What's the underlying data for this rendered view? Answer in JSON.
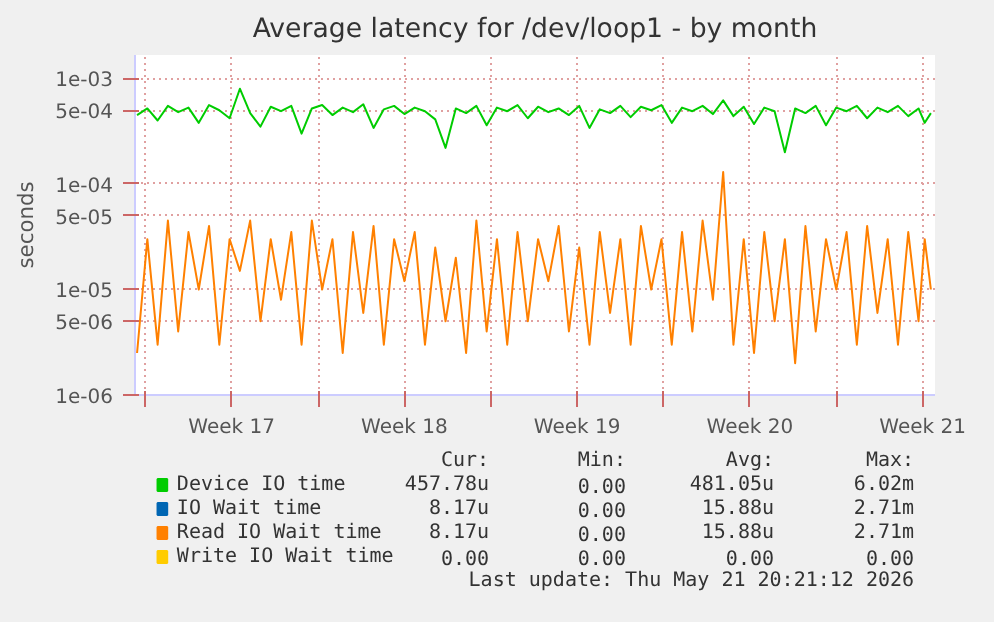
{
  "chart_data": {
    "type": "line",
    "title": "Average latency for /dev/loop1 - by month",
    "ylabel": "seconds",
    "log": "y",
    "grid": true,
    "legend": "bottom",
    "marker": "none",
    "line_style": "solid",
    "xlim": [
      "2026-04-19T14:00",
      "2026-05-22T00:00"
    ],
    "ylim": [
      1e-06,
      0.00167
    ],
    "xticks": [
      {
        "value": "2026-04-20",
        "label": null
      },
      {
        "value": "2026-04-23T12:00",
        "label": "Week 17"
      },
      {
        "value": "2026-04-27",
        "label": null
      },
      {
        "value": "2026-04-30T12:00",
        "label": "Week 18"
      },
      {
        "value": "2026-05-04",
        "label": null
      },
      {
        "value": "2026-05-07T12:00",
        "label": "Week 19"
      },
      {
        "value": "2026-05-11",
        "label": null
      },
      {
        "value": "2026-05-14T12:00",
        "label": "Week 20"
      },
      {
        "value": "2026-05-18",
        "label": null
      },
      {
        "value": "2026-05-21T12:00",
        "label": "Week 21"
      }
    ],
    "yticks": [
      {
        "value": 1e-06,
        "label": "1e-06"
      },
      {
        "value": 5e-06,
        "label": "5e-06"
      },
      {
        "value": 1e-05,
        "label": "1e-05"
      },
      {
        "value": 5e-05,
        "label": "5e-05"
      },
      {
        "value": 0.0001,
        "label": "1e-04"
      },
      {
        "value": 0.0005,
        "label": "5e-04"
      },
      {
        "value": 0.001,
        "label": "1e-03"
      }
    ],
    "x": [
      "2026-04-19T16:00",
      "2026-04-20T02:00",
      "2026-04-20T12:00",
      "2026-04-20T22:00",
      "2026-04-21T08:00",
      "2026-04-21T18:00",
      "2026-04-22T04:00",
      "2026-04-22T14:00",
      "2026-04-23T00:00",
      "2026-04-23T10:00",
      "2026-04-23T20:00",
      "2026-04-24T06:00",
      "2026-04-24T16:00",
      "2026-04-25T02:00",
      "2026-04-25T12:00",
      "2026-04-25T22:00",
      "2026-04-26T08:00",
      "2026-04-26T18:00",
      "2026-04-27T04:00",
      "2026-04-27T14:00",
      "2026-04-28T00:00",
      "2026-04-28T10:00",
      "2026-04-28T20:00",
      "2026-04-29T06:00",
      "2026-04-29T16:00",
      "2026-04-30T02:00",
      "2026-04-30T12:00",
      "2026-04-30T22:00",
      "2026-05-01T08:00",
      "2026-05-01T18:00",
      "2026-05-02T04:00",
      "2026-05-02T14:00",
      "2026-05-03T00:00",
      "2026-05-03T10:00",
      "2026-05-03T20:00",
      "2026-05-04T06:00",
      "2026-05-04T16:00",
      "2026-05-05T02:00",
      "2026-05-05T12:00",
      "2026-05-05T22:00",
      "2026-05-06T08:00",
      "2026-05-06T18:00",
      "2026-05-07T04:00",
      "2026-05-07T14:00",
      "2026-05-08T00:00",
      "2026-05-08T10:00",
      "2026-05-08T20:00",
      "2026-05-09T06:00",
      "2026-05-09T16:00",
      "2026-05-10T02:00",
      "2026-05-10T12:00",
      "2026-05-10T22:00",
      "2026-05-11T08:00",
      "2026-05-11T18:00",
      "2026-05-12T04:00",
      "2026-05-12T14:00",
      "2026-05-13T00:00",
      "2026-05-13T10:00",
      "2026-05-13T20:00",
      "2026-05-14T06:00",
      "2026-05-14T16:00",
      "2026-05-15T02:00",
      "2026-05-15T12:00",
      "2026-05-15T22:00",
      "2026-05-16T08:00",
      "2026-05-16T18:00",
      "2026-05-17T04:00",
      "2026-05-17T14:00",
      "2026-05-18T00:00",
      "2026-05-18T10:00",
      "2026-05-18T20:00",
      "2026-05-19T06:00",
      "2026-05-19T16:00",
      "2026-05-20T02:00",
      "2026-05-20T12:00",
      "2026-05-20T22:00",
      "2026-05-21T08:00",
      "2026-05-21T14:00",
      "2026-05-21T20:00"
    ],
    "series": [
      {
        "name": "Device IO time",
        "color": "#00cc00",
        "values": [
          0.00045,
          0.00052,
          0.0004,
          0.00055,
          0.00048,
          0.00053,
          0.00038,
          0.00056,
          0.0005,
          0.00042,
          0.0008,
          0.00047,
          0.00035,
          0.00054,
          0.00049,
          0.00055,
          0.0003,
          0.00052,
          0.00056,
          0.00045,
          0.00053,
          0.00048,
          0.00057,
          0.00034,
          0.00051,
          0.00055,
          0.00046,
          0.00053,
          0.00049,
          0.00041,
          0.00022,
          0.00052,
          0.00047,
          0.00055,
          0.00036,
          0.00053,
          0.00049,
          0.00056,
          0.00042,
          0.00054,
          0.00048,
          0.00052,
          0.00045,
          0.00055,
          0.00034,
          0.00051,
          0.00047,
          0.00055,
          0.00043,
          0.00054,
          0.0005,
          0.00056,
          0.00038,
          0.00053,
          0.00049,
          0.00055,
          0.00046,
          0.00062,
          0.00044,
          0.00054,
          0.00037,
          0.00053,
          0.00049,
          0.0002,
          0.00052,
          0.00047,
          0.00055,
          0.00036,
          0.00053,
          0.00049,
          0.00055,
          0.00042,
          0.00053,
          0.00048,
          0.00055,
          0.00044,
          0.00052,
          0.00038,
          0.00047
        ]
      },
      {
        "name": "IO Wait time",
        "color": "#0066b3",
        "values": [
          null,
          null,
          null,
          null,
          null,
          null,
          null,
          null,
          null,
          null,
          null,
          null,
          null,
          null,
          null,
          null,
          null,
          null,
          null,
          null,
          null,
          null,
          null,
          null,
          null,
          null,
          null,
          null,
          null,
          null,
          null,
          null,
          null,
          null,
          null,
          null,
          null,
          null,
          null,
          null,
          null,
          null,
          null,
          null,
          null,
          null,
          null,
          null,
          null,
          null,
          null,
          null,
          null,
          null,
          null,
          null,
          null,
          null,
          null,
          null,
          null,
          null,
          null,
          null,
          null,
          null,
          null,
          null,
          null,
          null,
          null,
          null,
          null,
          null,
          null,
          null,
          null,
          null,
          null
        ]
      },
      {
        "name": "Read IO Wait time",
        "color": "#ff8000",
        "values": [
          2.5e-06,
          3e-05,
          3e-06,
          4.5e-05,
          4e-06,
          3.5e-05,
          1e-05,
          4e-05,
          3e-06,
          3e-05,
          1.5e-05,
          4.5e-05,
          5e-06,
          3e-05,
          8e-06,
          3.5e-05,
          3e-06,
          4.5e-05,
          1e-05,
          3e-05,
          2.5e-06,
          3.5e-05,
          6e-06,
          4e-05,
          3e-06,
          3e-05,
          1.2e-05,
          3.5e-05,
          3e-06,
          2.5e-05,
          5e-06,
          2e-05,
          2.5e-06,
          4.5e-05,
          4e-06,
          3e-05,
          3e-06,
          3.5e-05,
          5e-06,
          3e-05,
          1.2e-05,
          4e-05,
          4e-06,
          2.5e-05,
          3e-06,
          3.5e-05,
          6e-06,
          3e-05,
          3e-06,
          4e-05,
          1e-05,
          3e-05,
          3e-06,
          3.5e-05,
          4e-06,
          4.5e-05,
          8e-06,
          0.00013,
          3e-06,
          3e-05,
          2.5e-06,
          3.5e-05,
          5e-06,
          3e-05,
          2e-06,
          4e-05,
          4e-06,
          3e-05,
          1e-05,
          3.5e-05,
          3e-06,
          4e-05,
          6e-06,
          3e-05,
          3e-06,
          3.5e-05,
          5e-06,
          3e-05,
          1e-05
        ]
      },
      {
        "name": "Write IO Wait time",
        "color": "#ffcc00",
        "values": [
          null,
          null,
          null,
          null,
          null,
          null,
          null,
          null,
          null,
          null,
          null,
          null,
          null,
          null,
          null,
          null,
          null,
          null,
          null,
          null,
          null,
          null,
          null,
          null,
          null,
          null,
          null,
          null,
          null,
          null,
          null,
          null,
          null,
          null,
          null,
          null,
          null,
          null,
          null,
          null,
          null,
          null,
          null,
          null,
          null,
          null,
          null,
          null,
          null,
          null,
          null,
          null,
          null,
          null,
          null,
          null,
          null,
          null,
          null,
          null,
          null,
          null,
          null,
          null,
          null,
          null,
          null,
          null,
          null,
          null,
          null,
          null,
          null,
          null,
          null,
          null,
          null,
          null,
          null
        ]
      }
    ],
    "annotations": [
      "Cur:",
      "Min:",
      "Avg:",
      "Max:",
      "457.78u",
      "0.00",
      "481.05u",
      "6.02m",
      "8.17u",
      "0.00",
      "15.88u",
      "2.71m",
      "8.17u",
      "0.00",
      "15.88u",
      "2.71m",
      "0.00",
      "0.00",
      "0.00",
      "0.00",
      "Last update: Thu May 21 20:21:12 2026"
    ]
  }
}
